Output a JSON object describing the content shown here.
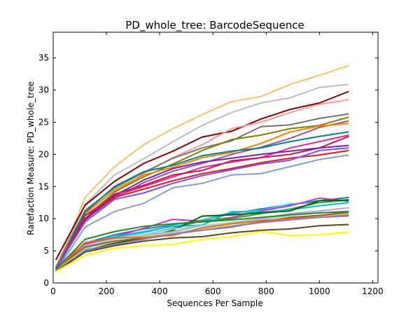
{
  "chart_data": {
    "type": "line",
    "title": "PD_whole_tree: BarcodeSequence",
    "xlabel": "Sequences Per Sample",
    "ylabel": "Rarefaction Measure: PD_whole_tree",
    "xlim": [
      0,
      1220
    ],
    "ylim": [
      0,
      39
    ],
    "x_ticks": [
      0,
      200,
      400,
      600,
      800,
      1000,
      1200
    ],
    "y_ticks": [
      0,
      5,
      10,
      15,
      20,
      25,
      30,
      35
    ],
    "grid": false,
    "legend": "none",
    "x": [
      10,
      120,
      230,
      340,
      450,
      560,
      670,
      780,
      890,
      1000,
      1110
    ],
    "series": [
      {
        "color": "#fdbf6f",
        "values": [
          2.2,
          13.3,
          18.1,
          21.5,
          24.0,
          26.2,
          28.2,
          29.0,
          30.9,
          32.3,
          33.8
        ]
      },
      {
        "color": "#bdbdbd",
        "values": [
          2.3,
          12.2,
          16.8,
          19.3,
          22.0,
          24.5,
          26.5,
          28.0,
          28.8,
          30.4,
          30.9
        ]
      },
      {
        "color": "#800000",
        "values": [
          3.6,
          12.1,
          15.8,
          18.6,
          20.5,
          22.7,
          23.6,
          25.5,
          27.0,
          28.0,
          29.8
        ]
      },
      {
        "color": "#fb9a99",
        "values": [
          2.0,
          10.5,
          14.0,
          17.0,
          19.5,
          21.5,
          24.0,
          25.0,
          26.5,
          27.8,
          28.5
        ]
      },
      {
        "color": "#737373",
        "values": [
          2.5,
          11.3,
          14.8,
          17.2,
          19.4,
          21.0,
          22.1,
          24.3,
          24.6,
          25.6,
          26.3
        ]
      },
      {
        "color": "#808000",
        "values": [
          2.1,
          10.0,
          14.2,
          16.5,
          18.5,
          20.6,
          22.3,
          23.0,
          24.0,
          24.5,
          25.8
        ]
      },
      {
        "color": "#984ea3",
        "values": [
          2.4,
          9.9,
          13.2,
          15.6,
          17.4,
          18.6,
          20.0,
          21.1,
          22.5,
          24.2,
          25.2
        ]
      },
      {
        "color": "#ff7f00",
        "values": [
          2.2,
          10.8,
          14.5,
          16.8,
          18.0,
          19.5,
          20.3,
          21.7,
          23.5,
          24.4,
          24.8
        ]
      },
      {
        "color": "#008080",
        "values": [
          2.0,
          11.0,
          15.0,
          17.3,
          18.3,
          19.8,
          20.5,
          21.0,
          22.0,
          22.8,
          23.5
        ]
      },
      {
        "color": "#e7298a",
        "values": [
          1.9,
          10.5,
          13.5,
          15.0,
          16.5,
          18.0,
          18.8,
          19.5,
          21.0,
          22.0,
          23.0
        ]
      },
      {
        "color": "#c2185b",
        "values": [
          2.2,
          10.0,
          13.8,
          15.2,
          16.8,
          17.5,
          19.0,
          19.5,
          20.0,
          21.0,
          22.8
        ]
      },
      {
        "color": "#7b1fa2",
        "values": [
          2.0,
          9.8,
          13.6,
          16.0,
          17.8,
          18.8,
          19.4,
          20.0,
          20.5,
          21.0,
          21.4
        ]
      },
      {
        "color": "#e31a1c",
        "values": [
          1.9,
          10.5,
          13.3,
          14.6,
          15.9,
          17.0,
          17.8,
          18.7,
          19.4,
          19.9,
          20.6
        ]
      },
      {
        "color": "#7c4dff",
        "values": [
          2.2,
          9.5,
          13.0,
          14.0,
          15.5,
          16.7,
          17.6,
          18.5,
          19.1,
          20.6,
          21.0
        ]
      },
      {
        "color": "#80a0d0",
        "values": [
          1.8,
          8.7,
          11.1,
          12.4,
          14.8,
          15.5,
          16.8,
          17.0,
          18.1,
          19.2,
          19.9
        ]
      },
      {
        "color": "#1f78b4",
        "values": [
          2.3,
          6.2,
          7.5,
          8.4,
          9.0,
          9.8,
          10.8,
          11.5,
          12.2,
          12.8,
          13.3
        ]
      },
      {
        "color": "#42c8e8",
        "values": [
          2.0,
          5.2,
          7.0,
          7.8,
          8.9,
          9.8,
          11.0,
          11.3,
          12.3,
          12.5,
          13.0
        ]
      },
      {
        "color": "#cc33cc",
        "values": [
          2.1,
          6.0,
          7.2,
          8.5,
          9.9,
          9.6,
          10.2,
          11.2,
          12.0,
          13.2,
          12.7
        ]
      },
      {
        "color": "#2ca02c",
        "values": [
          2.0,
          5.6,
          6.8,
          7.5,
          8.5,
          9.7,
          10.0,
          10.8,
          11.5,
          12.5,
          12.9
        ]
      },
      {
        "color": "#00bcd4",
        "values": [
          1.8,
          5.5,
          7.2,
          8.0,
          8.8,
          9.0,
          11.1,
          11.0,
          11.4,
          12.0,
          12.5
        ]
      },
      {
        "color": "#006400",
        "values": [
          1.8,
          5.0,
          6.2,
          7.0,
          8.2,
          10.4,
          10.6,
          10.9,
          11.2,
          12.8,
          12.9
        ]
      },
      {
        "color": "#b4a0e0",
        "values": [
          2.1,
          5.6,
          6.8,
          7.4,
          8.0,
          8.9,
          9.4,
          10.0,
          10.8,
          11.2,
          11.7
        ]
      },
      {
        "color": "#a6cee3",
        "values": [
          1.9,
          5.8,
          6.8,
          7.5,
          8.4,
          8.9,
          9.3,
          9.8,
          10.5,
          10.9,
          11.2
        ]
      },
      {
        "color": "#b2df8a",
        "values": [
          2.0,
          5.4,
          6.4,
          7.2,
          7.8,
          8.4,
          8.9,
          9.6,
          10.0,
          10.4,
          10.8
        ]
      },
      {
        "color": "#a0522d",
        "values": [
          2.2,
          5.6,
          6.5,
          7.0,
          7.6,
          8.2,
          8.7,
          9.5,
          10.2,
          10.5,
          11.0
        ]
      },
      {
        "color": "#ef6c00",
        "values": [
          2.0,
          6.3,
          7.0,
          7.1,
          7.4,
          8.6,
          9.2,
          9.7,
          10.0,
          10.2,
          10.6
        ]
      },
      {
        "color": "#8e7cc3",
        "values": [
          1.9,
          5.0,
          6.0,
          6.8,
          7.6,
          8.2,
          8.8,
          9.4,
          9.8,
          10.2,
          10.4
        ]
      },
      {
        "color": "#228b22",
        "values": [
          2.1,
          6.8,
          8.0,
          8.8,
          9.2,
          9.5,
          9.8,
          10.2,
          10.6,
          10.9,
          11.1
        ]
      },
      {
        "color": "#654321",
        "values": [
          1.8,
          4.8,
          5.8,
          6.5,
          7.0,
          7.2,
          7.8,
          8.2,
          8.4,
          8.9,
          9.1
        ]
      },
      {
        "color": "#ffff00",
        "values": [
          1.8,
          4.3,
          5.4,
          5.8,
          6.0,
          6.8,
          7.2,
          8.0,
          7.4,
          7.5,
          7.9
        ]
      }
    ]
  }
}
